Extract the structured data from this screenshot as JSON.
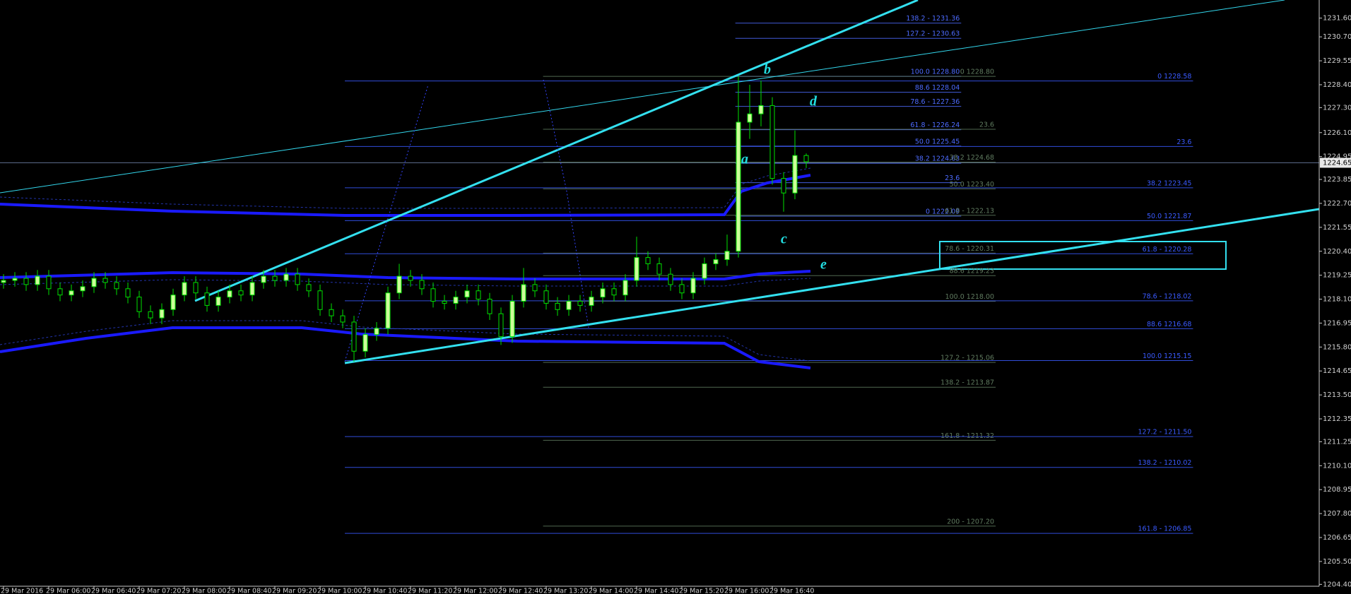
{
  "chart_data": {
    "type": "candlestick",
    "categories": [
      "29 Mar 2016",
      null,
      null,
      null,
      "29 Mar 06:00",
      null,
      null,
      null,
      "29 Mar 06:40",
      null,
      null,
      null,
      "29 Mar 07:20",
      null,
      null,
      null,
      "29 Mar 08:00",
      null,
      null,
      null,
      "29 Mar 08:40",
      null,
      null,
      null,
      "29 Mar 09:20",
      null,
      null,
      null,
      "29 Mar 10:00",
      null,
      null,
      null,
      "29 Mar 10:40",
      null,
      null,
      null,
      "29 Mar 11:20",
      null,
      null,
      null,
      "29 Mar 12:00",
      null,
      null,
      null,
      "29 Mar 12:40",
      null,
      null,
      null,
      "29 Mar 13:20",
      null,
      null,
      null,
      "29 Mar 14:00",
      null,
      null,
      null,
      "29 Mar 14:40",
      null,
      null,
      null,
      "29 Mar 15:20",
      null,
      null,
      null,
      "29 Mar 16:00",
      null,
      null,
      null,
      "29 Mar 16:40",
      null,
      null,
      null
    ],
    "open": [
      1218.9,
      1219.0,
      1219.1,
      1218.8,
      1219.2,
      1218.6,
      1218.3,
      1218.5,
      1218.7,
      1219.1,
      1218.9,
      1218.6,
      1218.2,
      1217.5,
      1217.2,
      1217.6,
      1218.3,
      1218.9,
      1218.4,
      1217.8,
      1218.2,
      1218.5,
      1218.3,
      1218.9,
      1219.2,
      1219.0,
      1219.3,
      1218.8,
      1218.5,
      1217.6,
      1217.3,
      1217.0,
      1215.6,
      1216.4,
      1216.7,
      1218.4,
      1219.2,
      1219.0,
      1218.6,
      1218.0,
      1217.9,
      1218.2,
      1218.5,
      1218.1,
      1217.4,
      1216.3,
      1218.0,
      1218.8,
      1218.5,
      1217.9,
      1217.6,
      1218.0,
      1217.8,
      1218.2,
      1218.6,
      1218.3,
      1219.0,
      1220.1,
      1219.8,
      1219.3,
      1218.8,
      1218.4,
      1219.1,
      1219.8,
      1220.0,
      1220.4,
      1226.6,
      1227.0,
      1227.4,
      1223.9,
      1223.2,
      1225.0
    ],
    "high": [
      1219.3,
      1219.4,
      1219.4,
      1219.5,
      1219.5,
      1218.9,
      1218.8,
      1219.0,
      1219.4,
      1219.4,
      1219.2,
      1218.9,
      1218.5,
      1217.8,
      1217.9,
      1218.6,
      1219.2,
      1219.2,
      1218.7,
      1218.5,
      1218.8,
      1218.8,
      1219.2,
      1219.5,
      1219.5,
      1219.6,
      1219.6,
      1219.1,
      1218.8,
      1217.9,
      1217.6,
      1217.3,
      1216.7,
      1217.0,
      1218.7,
      1219.8,
      1219.5,
      1219.3,
      1218.9,
      1218.3,
      1218.5,
      1218.8,
      1218.8,
      1218.4,
      1217.7,
      1218.3,
      1219.6,
      1219.1,
      1218.8,
      1218.2,
      1218.3,
      1218.3,
      1218.5,
      1218.9,
      1218.9,
      1219.3,
      1221.1,
      1220.4,
      1220.1,
      1219.6,
      1219.1,
      1219.4,
      1220.1,
      1220.3,
      1221.2,
      1228.8,
      1228.4,
      1228.6,
      1227.8,
      1224.2,
      1226.2,
      1225.1
    ],
    "low": [
      1218.6,
      1218.7,
      1218.5,
      1218.5,
      1218.3,
      1218.0,
      1218.0,
      1218.2,
      1218.4,
      1218.6,
      1218.3,
      1217.9,
      1217.2,
      1216.9,
      1216.9,
      1217.3,
      1218.0,
      1218.1,
      1217.5,
      1217.5,
      1217.9,
      1218.0,
      1218.0,
      1218.6,
      1218.7,
      1218.7,
      1218.5,
      1218.2,
      1217.3,
      1217.0,
      1216.7,
      1215.1,
      1215.3,
      1216.1,
      1216.4,
      1218.1,
      1218.7,
      1218.3,
      1217.7,
      1217.6,
      1217.6,
      1217.9,
      1217.8,
      1217.1,
      1215.9,
      1216.0,
      1217.7,
      1218.2,
      1217.6,
      1217.3,
      1217.3,
      1217.5,
      1217.5,
      1217.9,
      1218.0,
      1218.0,
      1218.7,
      1219.5,
      1219.0,
      1218.5,
      1218.1,
      1218.1,
      1218.8,
      1219.5,
      1219.7,
      1220.1,
      1225.8,
      1226.4,
      1223.6,
      1222.3,
      1222.9,
      1224.4
    ],
    "close": [
      1219.0,
      1219.1,
      1218.8,
      1219.2,
      1218.6,
      1218.3,
      1218.5,
      1218.7,
      1219.1,
      1218.9,
      1218.6,
      1218.2,
      1217.5,
      1217.2,
      1217.6,
      1218.3,
      1218.9,
      1218.4,
      1217.8,
      1218.2,
      1218.5,
      1218.3,
      1218.9,
      1219.2,
      1219.0,
      1219.3,
      1218.8,
      1218.5,
      1217.6,
      1217.3,
      1217.0,
      1215.6,
      1216.4,
      1216.7,
      1218.4,
      1219.2,
      1219.0,
      1218.6,
      1218.0,
      1217.9,
      1218.2,
      1218.5,
      1218.1,
      1217.4,
      1216.3,
      1218.0,
      1218.8,
      1218.5,
      1217.9,
      1217.6,
      1218.0,
      1217.8,
      1218.2,
      1218.6,
      1218.3,
      1219.0,
      1220.1,
      1219.8,
      1219.3,
      1218.8,
      1218.4,
      1219.1,
      1219.8,
      1220.0,
      1220.4,
      1226.6,
      1227.0,
      1227.4,
      1223.9,
      1223.2,
      1225.0,
      1224.7
    ],
    "colors": {
      "up": "#ccff99",
      "down": "#000000",
      "wick": "#00e000"
    },
    "ylim": [
      1204.31,
      1232.47
    ],
    "yticks": [
      {
        "value": 1231.6,
        "label": "1231.60"
      },
      {
        "value": 1230.7,
        "label": "1230.70"
      },
      1229.55,
      {
        "value": 1228.4,
        "label": "1228.40"
      },
      {
        "value": 1227.3,
        "label": "1227.30"
      },
      {
        "value": 1226.1,
        "label": "1226.10"
      },
      1224.95,
      1223.85,
      {
        "value": 1222.7,
        "label": "1222.70"
      },
      1221.55,
      {
        "value": 1220.4,
        "label": "1220.40"
      },
      1219.25,
      {
        "value": 1218.1,
        "label": "1218.10"
      },
      1216.95,
      {
        "value": 1215.8,
        "label": "1215.80"
      },
      1214.65,
      {
        "value": 1213.5,
        "label": "1213.50"
      },
      1212.35,
      1211.25,
      {
        "value": 1210.1,
        "label": "1210.10"
      },
      1208.95,
      {
        "value": 1207.8,
        "label": "1207.80"
      },
      1206.65,
      {
        "value": 1205.5,
        "label": "1205.50"
      },
      {
        "value": 1204.4,
        "label": "1204.40"
      }
    ],
    "grid": false,
    "current_price": 1224.65,
    "annotations": [
      "a",
      "b",
      "c",
      "d",
      "e"
    ],
    "fib_sets": [
      {
        "color": "#4d6bff",
        "levels": [
          {
            "label": "138.2 - 1231.36",
            "price": 1231.36
          },
          {
            "label": "127.2 - 1230.63",
            "price": 1230.63
          },
          {
            "label": "100.0 1228.80",
            "price": 1228.8
          },
          {
            "label": "88.6 1228.04",
            "price": 1228.04
          },
          {
            "label": "78.6 - 1227.36",
            "price": 1227.36
          },
          {
            "label": "61.8 - 1226.24",
            "price": 1226.24
          },
          {
            "label": "50.0 1225.45",
            "price": 1225.45
          },
          {
            "label": "38.2 1224.63",
            "price": 1224.63
          },
          {
            "label": "23.6"
          },
          {
            "label": "0 1222.09",
            "price": 1222.09
          }
        ]
      },
      {
        "color": "#5f7a5f",
        "levels": [
          {
            "label": "0 1228.80",
            "price": 1228.8
          },
          {
            "label": "23.6"
          },
          {
            "label": "38.2 1224.68",
            "price": 1224.68
          },
          {
            "label": "50.0 1223.40",
            "price": 1223.4
          },
          {
            "label": "61.8 - 1222.13",
            "price": 1222.13
          },
          {
            "label": "78.6 - 1220.31",
            "price": 1220.31
          },
          {
            "label": "88.6 1219.23",
            "price": 1219.23
          },
          {
            "label": "100.0 1218.00",
            "price": 1218
          },
          {
            "label": "127.2 - 1215.06",
            "price": 1215.06
          },
          {
            "label": "138.2 - 1213.87",
            "price": 1213.87
          },
          {
            "label": "161.8 - 1211.32",
            "price": 1211.32
          },
          {
            "label": "200 - 1207.20",
            "price": 1207.2
          }
        ]
      },
      {
        "color": "#3a5aff",
        "levels": [
          {
            "label": "0 1228.58",
            "price": 1228.58
          },
          {
            "label": "23.6"
          },
          {
            "label": "38.2 1223.45",
            "price": 1223.45
          },
          {
            "label": "50.0 1221.87",
            "price": 1221.87
          },
          {
            "label": "61.8 - 1220.28",
            "price": 1220.28
          },
          {
            "label": "78.6 - 1218.02",
            "price": 1218.02
          },
          {
            "label": "88.6 1216.68",
            "price": 1216.68
          },
          {
            "label": "100.0 1215.15",
            "price": 1215.15
          },
          {
            "label": "127.2 - 1211.50",
            "price": 1211.5
          },
          {
            "label": "138.2 - 1210.02",
            "price": 1210.02
          },
          {
            "label": "161.8 - 1206.85",
            "price": 1206.85
          }
        ]
      }
    ]
  }
}
